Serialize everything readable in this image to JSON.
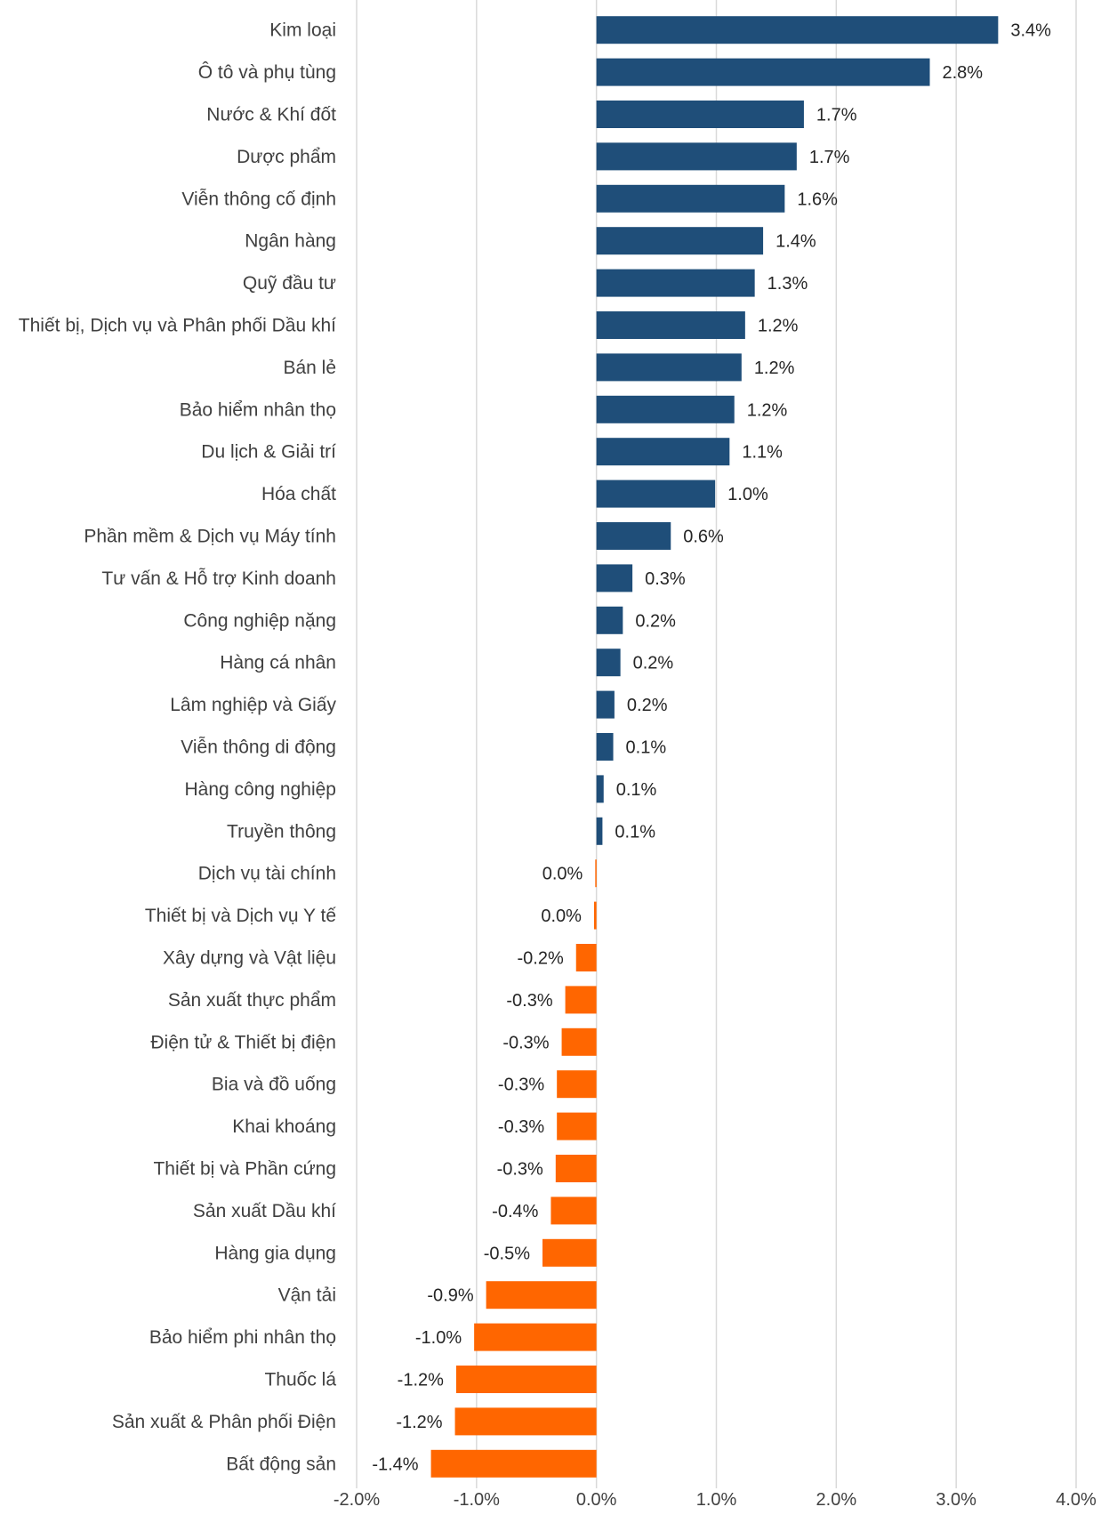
{
  "chart_data": {
    "type": "bar",
    "orientation": "horizontal",
    "title": "",
    "xlabel": "",
    "ylabel": "",
    "xlim": [
      -2.0,
      4.0
    ],
    "x_ticks": [
      -2.0,
      -1.0,
      0.0,
      1.0,
      2.0,
      3.0,
      4.0
    ],
    "x_tick_labels": [
      "-2.0%",
      "-1.0%",
      "0.0%",
      "1.0%",
      "2.0%",
      "3.0%",
      "4.0%"
    ],
    "grid": "vertical",
    "legend": "none",
    "colors": {
      "positive": "#1f4e79",
      "negative": "#ff6600"
    },
    "categories": [
      "Kim loại",
      "Ô tô và phụ tùng",
      "Nước & Khí đốt",
      "Dược phẩm",
      "Viễn thông cố định",
      "Ngân hàng",
      "Quỹ đầu tư",
      "Thiết bị, Dịch vụ và Phân phối Dầu khí",
      "Bán lẻ",
      "Bảo hiểm nhân thọ",
      "Du lịch & Giải trí",
      "Hóa chất",
      "Phần mềm & Dịch vụ Máy tính",
      "Tư vấn & Hỗ trợ Kinh doanh",
      "Công nghiệp nặng",
      "Hàng cá nhân",
      "Lâm nghiệp và Giấy",
      "Viễn thông di động",
      "Hàng công nghiệp",
      "Truyền thông",
      "Dịch vụ tài chính",
      "Thiết bị và Dịch vụ Y tế",
      "Xây dựng và Vật liệu",
      "Sản xuất thực phẩm",
      "Điện tử & Thiết bị điện",
      "Bia và đồ uống",
      "Khai khoáng",
      "Thiết bị và Phần cứng",
      "Sản xuất Dầu khí",
      "Hàng gia dụng",
      "Vận tải",
      "Bảo hiểm phi nhân thọ",
      "Thuốc lá",
      "Sản xuất & Phân phối Điện",
      "Bất động sản"
    ],
    "values": [
      3.35,
      2.78,
      1.73,
      1.67,
      1.57,
      1.39,
      1.32,
      1.24,
      1.21,
      1.15,
      1.11,
      0.99,
      0.62,
      0.3,
      0.22,
      0.2,
      0.15,
      0.14,
      0.06,
      0.05,
      -0.01,
      -0.02,
      -0.17,
      -0.26,
      -0.29,
      -0.33,
      -0.33,
      -0.34,
      -0.38,
      -0.45,
      -0.92,
      -1.02,
      -1.17,
      -1.18,
      -1.38
    ],
    "value_labels": [
      "3.4%",
      "2.8%",
      "1.7%",
      "1.7%",
      "1.6%",
      "1.4%",
      "1.3%",
      "1.2%",
      "1.2%",
      "1.2%",
      "1.1%",
      "1.0%",
      "0.6%",
      "0.3%",
      "0.2%",
      "0.2%",
      "0.2%",
      "0.1%",
      "0.1%",
      "0.1%",
      "0.0%",
      "0.0%",
      "-0.2%",
      "-0.3%",
      "-0.3%",
      "-0.3%",
      "-0.3%",
      "-0.3%",
      "-0.4%",
      "-0.5%",
      "-0.9%",
      "-1.0%",
      "-1.2%",
      "-1.2%",
      "-1.4%"
    ]
  }
}
